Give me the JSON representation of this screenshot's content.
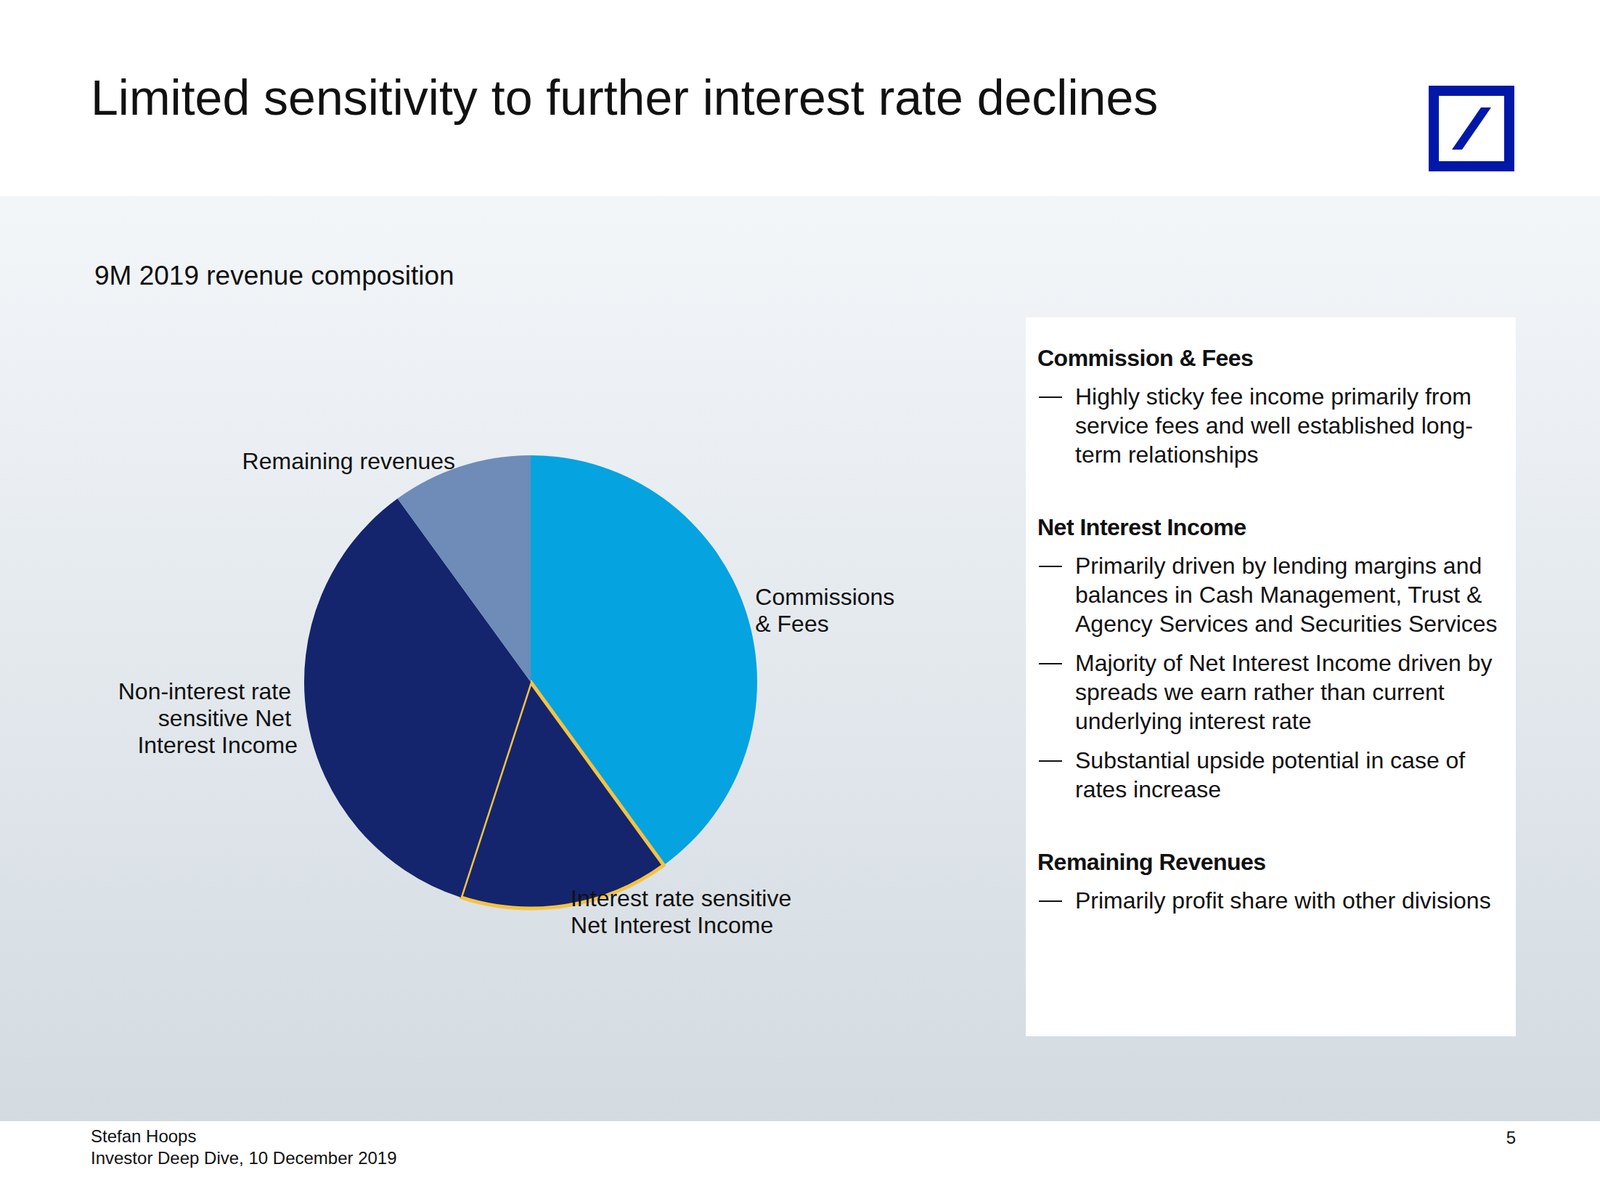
{
  "chart_data": {
    "type": "pie",
    "title": "9M 2019 revenue composition",
    "categories": [
      "Commissions & Fees",
      "Interest rate sensitive Net Interest Income",
      "Non-interest rate sensitive Net Interest Income",
      "Remaining revenues"
    ],
    "values": [
      40,
      15,
      35,
      10
    ],
    "colors": [
      "#05a3e0",
      "#14256e",
      "#14256e",
      "#6e8cb7"
    ]
  },
  "page": {
    "heading": "Limited sensitivity to further interest rate declines",
    "notes": [
      {
        "heading": "Commission & Fees",
        "bullets": [
          "Highly sticky fee income primarily from service fees and well established long-term relationships"
        ]
      },
      {
        "heading": "Net Interest Income",
        "bullets": [
          "Primarily driven by lending margins and balances in Cash Management, Trust & Agency Services and Securities Services",
          "Majority of Net Interest Income driven by spreads we earn rather than current underlying interest rate",
          "Substantial upside potential in case of rates increase"
        ]
      },
      {
        "heading": "Remaining Revenues",
        "bullets": [
          "Primarily profit share with other divisions"
        ]
      }
    ],
    "footer": [
      "Stefan Hoops",
      "Investor Deep Dive, 10 December 2019"
    ],
    "page_number": "5"
  }
}
